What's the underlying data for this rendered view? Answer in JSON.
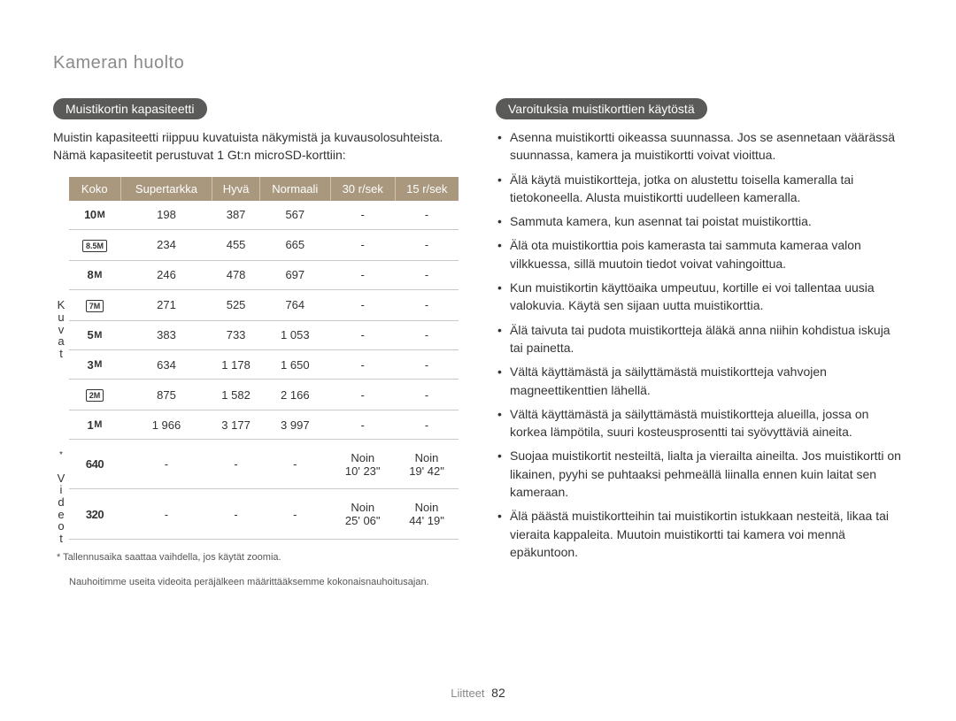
{
  "page_title": "Kameran huolto",
  "left": {
    "heading": "Muistikortin kapasiteetti",
    "intro": "Muistin kapasiteetti riippuu kuvatuista näkymistä ja kuvausolosuhteista. Nämä kapasiteetit perustuvat 1 Gt:n microSD-korttiin:",
    "columns": [
      "Koko",
      "Supertarkka",
      "Hyvä",
      "Normaali",
      "30 r/sek",
      "15 r/sek"
    ],
    "section_kuvat_label": "Kuvat",
    "section_videot_label": "Videot",
    "rows_kuvat": [
      {
        "size_html": "<span class='size-icon'><span class='num'>10</span><span class='m'>M</span></span>",
        "vals": [
          "198",
          "387",
          "567",
          "-",
          "-"
        ]
      },
      {
        "size_html": "<span class='boxed-icon'>8.5M</span>",
        "vals": [
          "234",
          "455",
          "665",
          "-",
          "-"
        ]
      },
      {
        "size_html": "<span class='size-icon'><span class='num'>8</span><span class='m'>M</span></span>",
        "vals": [
          "246",
          "478",
          "697",
          "-",
          "-"
        ]
      },
      {
        "size_html": "<span class='boxed-icon'>7M</span>",
        "vals": [
          "271",
          "525",
          "764",
          "-",
          "-"
        ]
      },
      {
        "size_html": "<span class='size-icon'><span class='num'>5</span><span class='m'>M</span></span>",
        "vals": [
          "383",
          "733",
          "1 053",
          "-",
          "-"
        ]
      },
      {
        "size_html": "<span class='size-icon'><span class='num'>3</span><span class='m'>M</span></span>",
        "vals": [
          "634",
          "1 178",
          "1 650",
          "-",
          "-"
        ]
      },
      {
        "size_html": "<span class='boxed-icon'>2M</span>",
        "vals": [
          "875",
          "1 582",
          "2 166",
          "-",
          "-"
        ]
      },
      {
        "size_html": "<span class='size-icon'><span class='num'>1</span><span class='m'>M</span></span>",
        "vals": [
          "1 966",
          "3 177",
          "3 997",
          "-",
          "-"
        ]
      }
    ],
    "rows_videot": [
      {
        "size_html": "<span class='size-icon'><span class='num'>640</span></span>",
        "vals": [
          "-",
          "-",
          "-",
          "Noin\n10' 23\"",
          "Noin\n19' 42\""
        ]
      },
      {
        "size_html": "<span class='size-icon'><span class='num'>320</span></span>",
        "vals": [
          "-",
          "-",
          "-",
          "Noin\n25' 06\"",
          "Noin\n44' 19\""
        ]
      }
    ],
    "footnote_star": "*",
    "footnote1": "Tallennusaika saattaa vaihdella, jos käytät zoomia.",
    "footnote2": "Nauhoitimme useita videoita peräjälkeen määrittääksemme kokonaisnauhoitusajan."
  },
  "right": {
    "heading": "Varoituksia muistikorttien käytöstä",
    "items": [
      "Asenna muistikortti oikeassa suunnassa. Jos se asennetaan väärässä suunnassa, kamera ja muistikortti voivat vioittua.",
      "Älä käytä muistikortteja, jotka on alustettu toisella kameralla tai tietokoneella. Alusta muistikortti uudelleen kameralla.",
      "Sammuta kamera, kun asennat tai poistat muistikorttia.",
      "Älä ota muistikorttia pois kamerasta tai sammuta kameraa valon vilkkuessa, sillä muutoin tiedot voivat vahingoittua.",
      "Kun muistikortin käyttöaika umpeutuu, kortille ei voi tallentaa uusia valokuvia. Käytä sen sijaan uutta muistikorttia.",
      "Älä taivuta tai pudota muistikortteja äläkä anna niihin kohdistua iskuja tai painetta.",
      "Vältä käyttämästä ja säilyttämästä muistikortteja vahvojen magneettikenttien lähellä.",
      "Vältä käyttämästä ja säilyttämästä muistikortteja alueilla, jossa on korkea lämpötila, suuri kosteusprosentti tai syövyttäviä aineita.",
      "Suojaa muistikortit nesteiltä, lialta ja vierailta aineilta. Jos muistikortti on likainen, pyyhi se puhtaaksi pehmeällä liinalla ennen kuin laitat sen kameraan.",
      "Älä päästä muistikortteihin tai muistikortin istukkaan nesteitä, likaa tai vieraita kappaleita. Muutoin muistikortti tai kamera voi mennä epäkuntoon."
    ]
  },
  "footer_section": "Liitteet",
  "footer_page": "82",
  "colors": {
    "header_bg": "#a9987d",
    "header_text": "#ffffff",
    "pill_bg": "#5a5a58",
    "title_color": "#8a8a8a"
  }
}
